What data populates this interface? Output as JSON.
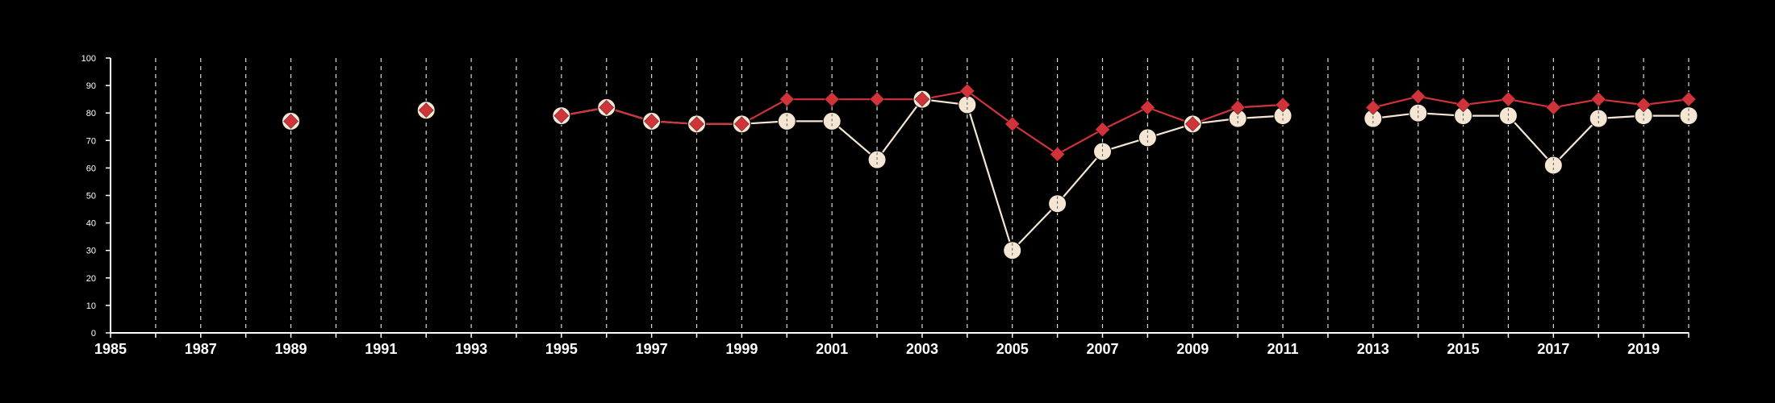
{
  "chart_data": {
    "type": "line",
    "title": "",
    "xlabel": "",
    "ylabel": "",
    "xlim": [
      1985,
      2020
    ],
    "ylim": [
      0,
      100
    ],
    "x_ticks": [
      "1985",
      "1987",
      "1989",
      "1991",
      "1993",
      "1995",
      "1997",
      "1999",
      "2001",
      "2003",
      "2005",
      "2007",
      "2009",
      "2011",
      "2013",
      "2015",
      "2017",
      "2019"
    ],
    "y_ticks": [
      "0",
      "10",
      "20",
      "30",
      "40",
      "50",
      "60",
      "70",
      "80",
      "90",
      "100"
    ],
    "grid": "vertical dashed lines at each year",
    "series": [
      {
        "marker": "circle",
        "color": "#f5e6d3",
        "points": [
          [
            1989,
            77
          ],
          [
            1992,
            81
          ],
          [
            1995,
            79
          ],
          [
            1996,
            82
          ],
          [
            1997,
            77
          ],
          [
            1998,
            76
          ],
          [
            1999,
            76
          ],
          [
            2000,
            77
          ],
          [
            2001,
            77
          ],
          [
            2002,
            63
          ],
          [
            2003,
            85
          ],
          [
            2004,
            83
          ],
          [
            2005,
            30
          ],
          [
            2006,
            47
          ],
          [
            2007,
            66
          ],
          [
            2008,
            71
          ],
          [
            2009,
            76
          ],
          [
            2010,
            78
          ],
          [
            2011,
            79
          ],
          [
            2013,
            78
          ],
          [
            2014,
            80
          ],
          [
            2015,
            79
          ],
          [
            2016,
            79
          ],
          [
            2017,
            61
          ],
          [
            2018,
            78
          ],
          [
            2019,
            79
          ],
          [
            2020,
            79
          ]
        ]
      },
      {
        "marker": "diamond",
        "color": "#d0343a",
        "points": [
          [
            1989,
            77
          ],
          [
            1992,
            81
          ],
          [
            1995,
            79
          ],
          [
            1996,
            82
          ],
          [
            1997,
            77
          ],
          [
            1998,
            76
          ],
          [
            1999,
            76
          ],
          [
            2000,
            85
          ],
          [
            2001,
            85
          ],
          [
            2002,
            85
          ],
          [
            2003,
            85
          ],
          [
            2004,
            88
          ],
          [
            2005,
            76
          ],
          [
            2006,
            65
          ],
          [
            2007,
            74
          ],
          [
            2008,
            82
          ],
          [
            2009,
            76
          ],
          [
            2010,
            82
          ],
          [
            2011,
            83
          ],
          [
            2013,
            82
          ],
          [
            2014,
            86
          ],
          [
            2015,
            83
          ],
          [
            2016,
            85
          ],
          [
            2017,
            82
          ],
          [
            2018,
            85
          ],
          [
            2019,
            83
          ],
          [
            2020,
            85
          ]
        ]
      }
    ]
  }
}
